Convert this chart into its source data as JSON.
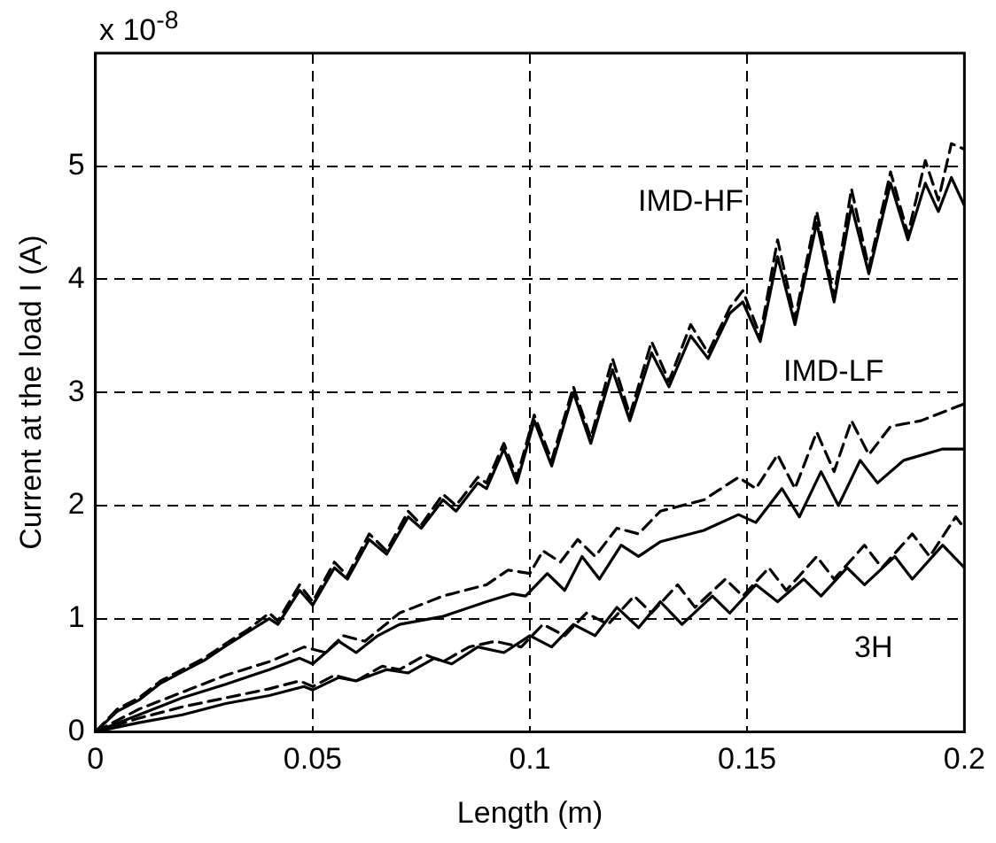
{
  "chart_data": {
    "type": "line",
    "xlabel": "Length (m)",
    "ylabel": "Current at the load I (A)",
    "xlim": [
      0,
      0.2
    ],
    "ylim": [
      0,
      6
    ],
    "xticks": [
      0,
      0.05,
      0.1,
      0.15,
      0.2
    ],
    "yticks": [
      0,
      1,
      2,
      3,
      4,
      5,
      {
        "value": 6,
        "label": null
      }
    ],
    "grid": true,
    "marker": "none",
    "annotations": [
      "x 10$^{-8}$",
      "IMD-HF",
      "IMD-LF",
      "3H"
    ],
    "series": [
      {
        "color": "#000000",
        "line_style": "dashed",
        "x": [
          0,
          0.005,
          0.01,
          0.015,
          0.02,
          0.025,
          0.03,
          0.035,
          0.04,
          0.042,
          0.047,
          0.05,
          0.055,
          0.058,
          0.063,
          0.067,
          0.072,
          0.075,
          0.08,
          0.083,
          0.088,
          0.09,
          0.094,
          0.097,
          0.101,
          0.105,
          0.11,
          0.114,
          0.119,
          0.123,
          0.128,
          0.132,
          0.137,
          0.141,
          0.146,
          0.149,
          0.153,
          0.157,
          0.161,
          0.166,
          0.17,
          0.174,
          0.178,
          0.183,
          0.187,
          0.191,
          0.194,
          0.197,
          0.2
        ],
        "values": [
          0,
          0.2,
          0.3,
          0.45,
          0.55,
          0.65,
          0.78,
          0.9,
          1.05,
          0.98,
          1.3,
          1.15,
          1.5,
          1.38,
          1.75,
          1.6,
          1.95,
          1.83,
          2.1,
          2.0,
          2.25,
          2.2,
          2.55,
          2.25,
          2.8,
          2.4,
          3.05,
          2.6,
          3.3,
          2.8,
          3.45,
          3.1,
          3.6,
          3.35,
          3.75,
          3.9,
          3.5,
          4.35,
          3.65,
          4.6,
          3.85,
          4.8,
          4.1,
          4.95,
          4.4,
          5.05,
          4.7,
          5.2,
          5.15
        ]
      },
      {
        "color": "#000000",
        "line_style": "solid",
        "x": [
          0,
          0.005,
          0.01,
          0.015,
          0.02,
          0.025,
          0.03,
          0.035,
          0.04,
          0.042,
          0.047,
          0.05,
          0.055,
          0.058,
          0.063,
          0.067,
          0.072,
          0.075,
          0.08,
          0.083,
          0.088,
          0.09,
          0.094,
          0.097,
          0.101,
          0.105,
          0.11,
          0.114,
          0.119,
          0.123,
          0.128,
          0.132,
          0.137,
          0.141,
          0.146,
          0.149,
          0.153,
          0.157,
          0.161,
          0.166,
          0.17,
          0.174,
          0.178,
          0.183,
          0.187,
          0.191,
          0.194,
          0.197,
          0.2
        ],
        "values": [
          0,
          0.18,
          0.28,
          0.43,
          0.53,
          0.63,
          0.76,
          0.88,
          1.0,
          0.95,
          1.25,
          1.12,
          1.45,
          1.35,
          1.7,
          1.57,
          1.9,
          1.8,
          2.05,
          1.95,
          2.2,
          2.15,
          2.5,
          2.2,
          2.75,
          2.35,
          3.0,
          2.55,
          3.2,
          2.75,
          3.35,
          3.05,
          3.5,
          3.3,
          3.7,
          3.8,
          3.45,
          4.2,
          3.6,
          4.5,
          3.8,
          4.65,
          4.05,
          4.85,
          4.35,
          4.85,
          4.6,
          4.9,
          4.65
        ]
      },
      {
        "color": "#000000",
        "line_style": "dashed",
        "x": [
          0,
          0.01,
          0.02,
          0.03,
          0.04,
          0.045,
          0.048,
          0.053,
          0.057,
          0.062,
          0.07,
          0.08,
          0.09,
          0.095,
          0.1,
          0.103,
          0.107,
          0.111,
          0.115,
          0.12,
          0.125,
          0.13,
          0.14,
          0.148,
          0.152,
          0.157,
          0.161,
          0.166,
          0.17,
          0.174,
          0.178,
          0.183,
          0.19,
          0.2
        ],
        "values": [
          0,
          0.2,
          0.35,
          0.5,
          0.62,
          0.7,
          0.75,
          0.7,
          0.85,
          0.8,
          1.05,
          1.2,
          1.3,
          1.43,
          1.4,
          1.6,
          1.5,
          1.7,
          1.55,
          1.8,
          1.75,
          1.95,
          2.05,
          2.25,
          2.15,
          2.45,
          2.15,
          2.65,
          2.3,
          2.75,
          2.45,
          2.7,
          2.75,
          2.9
        ]
      },
      {
        "color": "#000000",
        "line_style": "solid",
        "x": [
          0,
          0.01,
          0.02,
          0.03,
          0.04,
          0.047,
          0.05,
          0.056,
          0.06,
          0.065,
          0.07,
          0.08,
          0.09,
          0.096,
          0.099,
          0.104,
          0.108,
          0.112,
          0.116,
          0.121,
          0.125,
          0.13,
          0.14,
          0.148,
          0.152,
          0.158,
          0.162,
          0.167,
          0.171,
          0.176,
          0.18,
          0.186,
          0.195,
          0.2
        ],
        "values": [
          0,
          0.15,
          0.3,
          0.42,
          0.55,
          0.65,
          0.6,
          0.8,
          0.7,
          0.85,
          0.95,
          1.02,
          1.15,
          1.22,
          1.2,
          1.4,
          1.25,
          1.55,
          1.35,
          1.65,
          1.55,
          1.68,
          1.78,
          1.92,
          1.85,
          2.15,
          1.9,
          2.3,
          2.0,
          2.4,
          2.2,
          2.4,
          2.5,
          2.5
        ]
      },
      {
        "color": "#000000",
        "line_style": "dashed",
        "x": [
          0,
          0.01,
          0.02,
          0.03,
          0.04,
          0.047,
          0.05,
          0.055,
          0.06,
          0.066,
          0.07,
          0.076,
          0.08,
          0.086,
          0.092,
          0.098,
          0.103,
          0.108,
          0.113,
          0.118,
          0.124,
          0.128,
          0.134,
          0.138,
          0.145,
          0.149,
          0.155,
          0.159,
          0.166,
          0.17,
          0.177,
          0.181,
          0.188,
          0.192,
          0.198,
          0.2
        ],
        "values": [
          0,
          0.12,
          0.22,
          0.3,
          0.38,
          0.45,
          0.4,
          0.5,
          0.45,
          0.58,
          0.55,
          0.68,
          0.62,
          0.75,
          0.8,
          0.75,
          0.95,
          0.85,
          1.05,
          0.95,
          1.2,
          1.05,
          1.3,
          1.1,
          1.35,
          1.2,
          1.45,
          1.25,
          1.55,
          1.35,
          1.65,
          1.45,
          1.75,
          1.55,
          1.9,
          1.8
        ]
      },
      {
        "color": "#000000",
        "line_style": "solid",
        "x": [
          0,
          0.01,
          0.02,
          0.03,
          0.04,
          0.048,
          0.05,
          0.056,
          0.06,
          0.067,
          0.072,
          0.078,
          0.082,
          0.088,
          0.094,
          0.1,
          0.105,
          0.11,
          0.115,
          0.12,
          0.125,
          0.13,
          0.135,
          0.142,
          0.146,
          0.152,
          0.157,
          0.163,
          0.167,
          0.173,
          0.177,
          0.184,
          0.188,
          0.195,
          0.2
        ],
        "values": [
          0,
          0.08,
          0.15,
          0.25,
          0.32,
          0.4,
          0.37,
          0.48,
          0.45,
          0.55,
          0.52,
          0.65,
          0.6,
          0.75,
          0.7,
          0.85,
          0.75,
          0.95,
          0.85,
          1.1,
          0.92,
          1.15,
          0.95,
          1.2,
          1.05,
          1.3,
          1.15,
          1.35,
          1.2,
          1.45,
          1.3,
          1.55,
          1.35,
          1.65,
          1.45
        ]
      }
    ]
  }
}
